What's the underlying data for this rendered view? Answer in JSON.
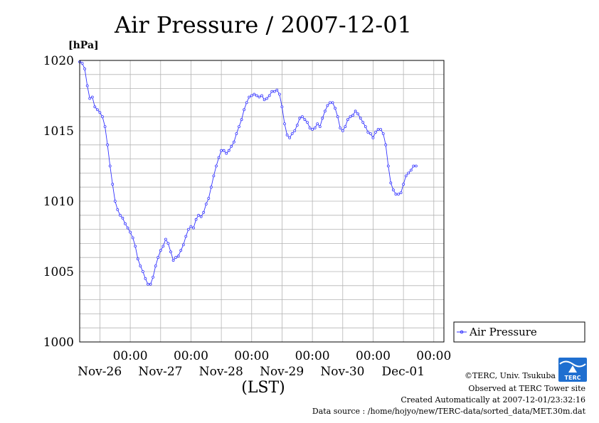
{
  "chart_data": {
    "type": "line",
    "title": "Air Pressure / 2007-12-01",
    "ylabel": "[hPa]",
    "xlabel": "(LST)",
    "ylim": [
      1000,
      1020
    ],
    "yticks": [
      "1000",
      "1005",
      "1010",
      "1015",
      "1020"
    ],
    "xlim": [
      0,
      144
    ],
    "xticks": [
      {
        "time": "00:00",
        "date": "Nov-26"
      },
      {
        "time": "00:00",
        "date": "Nov-27"
      },
      {
        "time": "00:00",
        "date": "Nov-28"
      },
      {
        "time": "00:00",
        "date": "Nov-29"
      },
      {
        "time": "00:00",
        "date": "Nov-30"
      },
      {
        "time": "00:00",
        "date": "Dec-01"
      }
    ],
    "grid": true,
    "legend_position": "right",
    "series": [
      {
        "name": "Air Pressure",
        "color": "#3333ff",
        "points": [
          [
            0,
            1019.9
          ],
          [
            1,
            1019.8
          ],
          [
            2,
            1019.4
          ],
          [
            3,
            1018.2
          ],
          [
            4,
            1017.3
          ],
          [
            5,
            1017.4
          ],
          [
            6,
            1016.7
          ],
          [
            7,
            1016.5
          ],
          [
            8,
            1016.3
          ],
          [
            9,
            1016.0
          ],
          [
            10,
            1015.3
          ],
          [
            11,
            1014.0
          ],
          [
            12,
            1012.5
          ],
          [
            13,
            1011.2
          ],
          [
            14,
            1010.0
          ],
          [
            15,
            1009.4
          ],
          [
            16,
            1009.0
          ],
          [
            17,
            1008.8
          ],
          [
            18,
            1008.4
          ],
          [
            19,
            1008.1
          ],
          [
            20,
            1007.8
          ],
          [
            21,
            1007.4
          ],
          [
            22,
            1006.8
          ],
          [
            23,
            1005.9
          ],
          [
            24,
            1005.4
          ],
          [
            25,
            1005.0
          ],
          [
            26,
            1004.5
          ],
          [
            27,
            1004.1
          ],
          [
            28,
            1004.1
          ],
          [
            29,
            1004.6
          ],
          [
            30,
            1005.4
          ],
          [
            31,
            1006.0
          ],
          [
            32,
            1006.5
          ],
          [
            33,
            1006.8
          ],
          [
            34,
            1007.3
          ],
          [
            35,
            1007.0
          ],
          [
            36,
            1006.4
          ],
          [
            37,
            1005.8
          ],
          [
            38,
            1006.0
          ],
          [
            39,
            1006.1
          ],
          [
            40,
            1006.5
          ],
          [
            41,
            1006.9
          ],
          [
            42,
            1007.5
          ],
          [
            43,
            1008.0
          ],
          [
            44,
            1008.2
          ],
          [
            45,
            1008.1
          ],
          [
            46,
            1008.7
          ],
          [
            47,
            1009.0
          ],
          [
            48,
            1008.9
          ],
          [
            49,
            1009.2
          ],
          [
            50,
            1009.8
          ],
          [
            51,
            1010.2
          ],
          [
            52,
            1011.0
          ],
          [
            53,
            1011.8
          ],
          [
            54,
            1012.5
          ],
          [
            55,
            1013.1
          ],
          [
            56,
            1013.6
          ],
          [
            57,
            1013.6
          ],
          [
            58,
            1013.4
          ],
          [
            59,
            1013.6
          ],
          [
            60,
            1013.9
          ],
          [
            61,
            1014.2
          ],
          [
            62,
            1014.8
          ],
          [
            63,
            1015.3
          ],
          [
            64,
            1015.8
          ],
          [
            65,
            1016.5
          ],
          [
            66,
            1017.0
          ],
          [
            67,
            1017.4
          ],
          [
            68,
            1017.5
          ],
          [
            69,
            1017.6
          ],
          [
            70,
            1017.5
          ],
          [
            71,
            1017.4
          ],
          [
            72,
            1017.5
          ],
          [
            73,
            1017.2
          ],
          [
            74,
            1017.3
          ],
          [
            75,
            1017.5
          ],
          [
            76,
            1017.8
          ],
          [
            77,
            1017.8
          ],
          [
            78,
            1017.9
          ],
          [
            79,
            1017.6
          ],
          [
            80,
            1016.7
          ],
          [
            81,
            1015.5
          ],
          [
            82,
            1014.7
          ],
          [
            83,
            1014.5
          ],
          [
            84,
            1014.8
          ],
          [
            85,
            1015.0
          ],
          [
            86,
            1015.4
          ],
          [
            87,
            1015.9
          ],
          [
            88,
            1016.0
          ],
          [
            89,
            1015.8
          ],
          [
            90,
            1015.6
          ],
          [
            91,
            1015.2
          ],
          [
            92,
            1015.1
          ],
          [
            93,
            1015.2
          ],
          [
            94,
            1015.5
          ],
          [
            95,
            1015.3
          ],
          [
            96,
            1015.9
          ],
          [
            97,
            1016.4
          ],
          [
            98,
            1016.8
          ],
          [
            99,
            1017.0
          ],
          [
            100,
            1017.0
          ],
          [
            101,
            1016.6
          ],
          [
            102,
            1016.0
          ],
          [
            103,
            1015.2
          ],
          [
            104,
            1015.0
          ],
          [
            105,
            1015.3
          ],
          [
            106,
            1015.8
          ],
          [
            107,
            1016.0
          ],
          [
            108,
            1016.1
          ],
          [
            109,
            1016.4
          ],
          [
            110,
            1016.2
          ],
          [
            111,
            1015.9
          ],
          [
            112,
            1015.6
          ],
          [
            113,
            1015.3
          ],
          [
            114,
            1014.9
          ],
          [
            115,
            1014.8
          ],
          [
            116,
            1014.5
          ],
          [
            117,
            1014.9
          ],
          [
            118,
            1015.1
          ],
          [
            119,
            1015.1
          ],
          [
            120,
            1014.8
          ],
          [
            121,
            1014.0
          ],
          [
            122,
            1012.5
          ],
          [
            123,
            1011.3
          ],
          [
            124,
            1010.8
          ],
          [
            125,
            1010.5
          ],
          [
            126,
            1010.5
          ],
          [
            127,
            1010.6
          ],
          [
            128,
            1011.2
          ],
          [
            129,
            1011.8
          ],
          [
            130,
            1012.0
          ],
          [
            131,
            1012.2
          ],
          [
            132,
            1012.5
          ],
          [
            133,
            1012.5
          ]
        ]
      }
    ]
  },
  "footer": {
    "credit": "©TERC, Univ. Tsukuba",
    "observed": "Observed at TERC Tower site",
    "created": "Created Automatically at 2007-12-01/23:32:16",
    "source": "Data source : /home/hojyo/new/TERC-data/sorted_data/MET.30m.dat"
  },
  "logo": {
    "icon": "terc-logo-icon",
    "text": "TERC",
    "color": "#1f6fd0"
  }
}
